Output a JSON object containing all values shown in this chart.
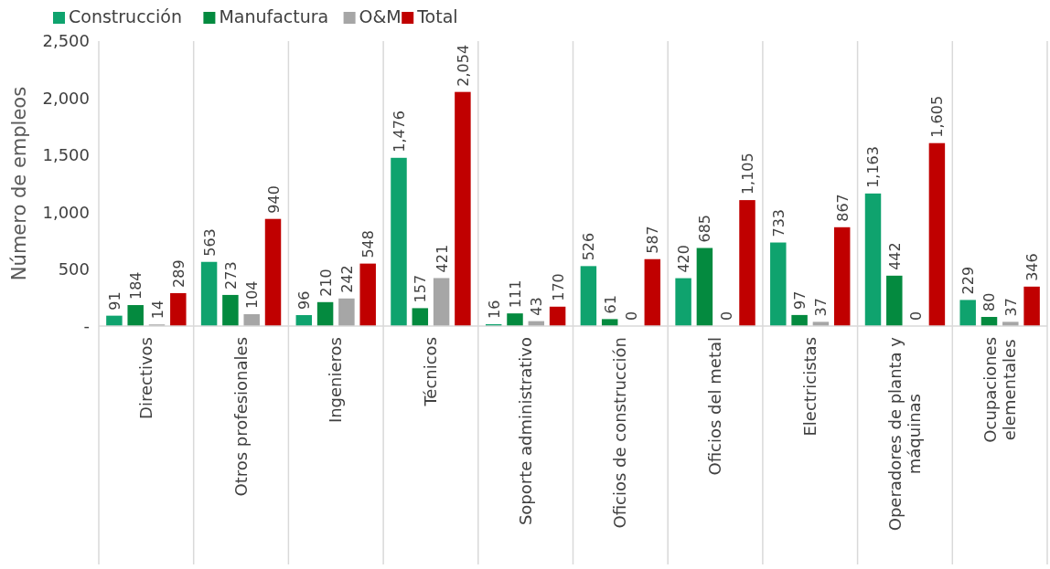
{
  "chart_data": {
    "type": "bar",
    "ylabel": "Número de empleos",
    "categories": [
      "Directivos",
      "Otros profesionales",
      "Ingenieros",
      "Técnicos",
      "Soporte administrativo",
      "Oficios de construcción",
      "Oficios del metal",
      "Electricistas",
      "Operadores de planta y\nmáquinas",
      "Ocupaciones\nelementales"
    ],
    "series": [
      {
        "name": "Construcción",
        "color": "#0fa36e",
        "values": [
          91,
          563,
          96,
          1476,
          16,
          526,
          420,
          733,
          1163,
          229
        ],
        "value_labels": [
          "91",
          "563",
          "96",
          "1,476",
          "16",
          "526",
          "420",
          "733",
          "1,163",
          "229"
        ]
      },
      {
        "name": "Manufactura",
        "color": "#048a3f",
        "values": [
          184,
          273,
          210,
          157,
          111,
          61,
          685,
          97,
          442,
          80
        ],
        "value_labels": [
          "184",
          "273",
          "210",
          "157",
          "111",
          "61",
          "685",
          "97",
          "442",
          "80"
        ]
      },
      {
        "name": "O&M",
        "color": "#a6a6a6",
        "values": [
          14,
          104,
          242,
          421,
          43,
          0,
          0,
          37,
          0,
          37
        ],
        "value_labels": [
          "14",
          "104",
          "242",
          "421",
          "43",
          "0",
          "0",
          "37",
          "0",
          "37"
        ]
      },
      {
        "name": "Total",
        "color": "#c00000",
        "values": [
          289,
          940,
          548,
          2054,
          170,
          587,
          1105,
          867,
          1605,
          346
        ],
        "value_labels": [
          "289",
          "940",
          "548",
          "2,054",
          "170",
          "587",
          "1,105",
          "867",
          "1,605",
          "346"
        ]
      }
    ],
    "ylim": [
      0,
      2500
    ],
    "yticks": [
      {
        "value": 0,
        "label": "-"
      },
      500,
      {
        "value": 1000,
        "label": "1,000"
      },
      {
        "value": 1500,
        "label": "1,500"
      },
      {
        "value": 2000,
        "label": "2,000"
      },
      {
        "value": 2500,
        "label": "2,500"
      }
    ],
    "grid": "x",
    "legend": "top left"
  }
}
